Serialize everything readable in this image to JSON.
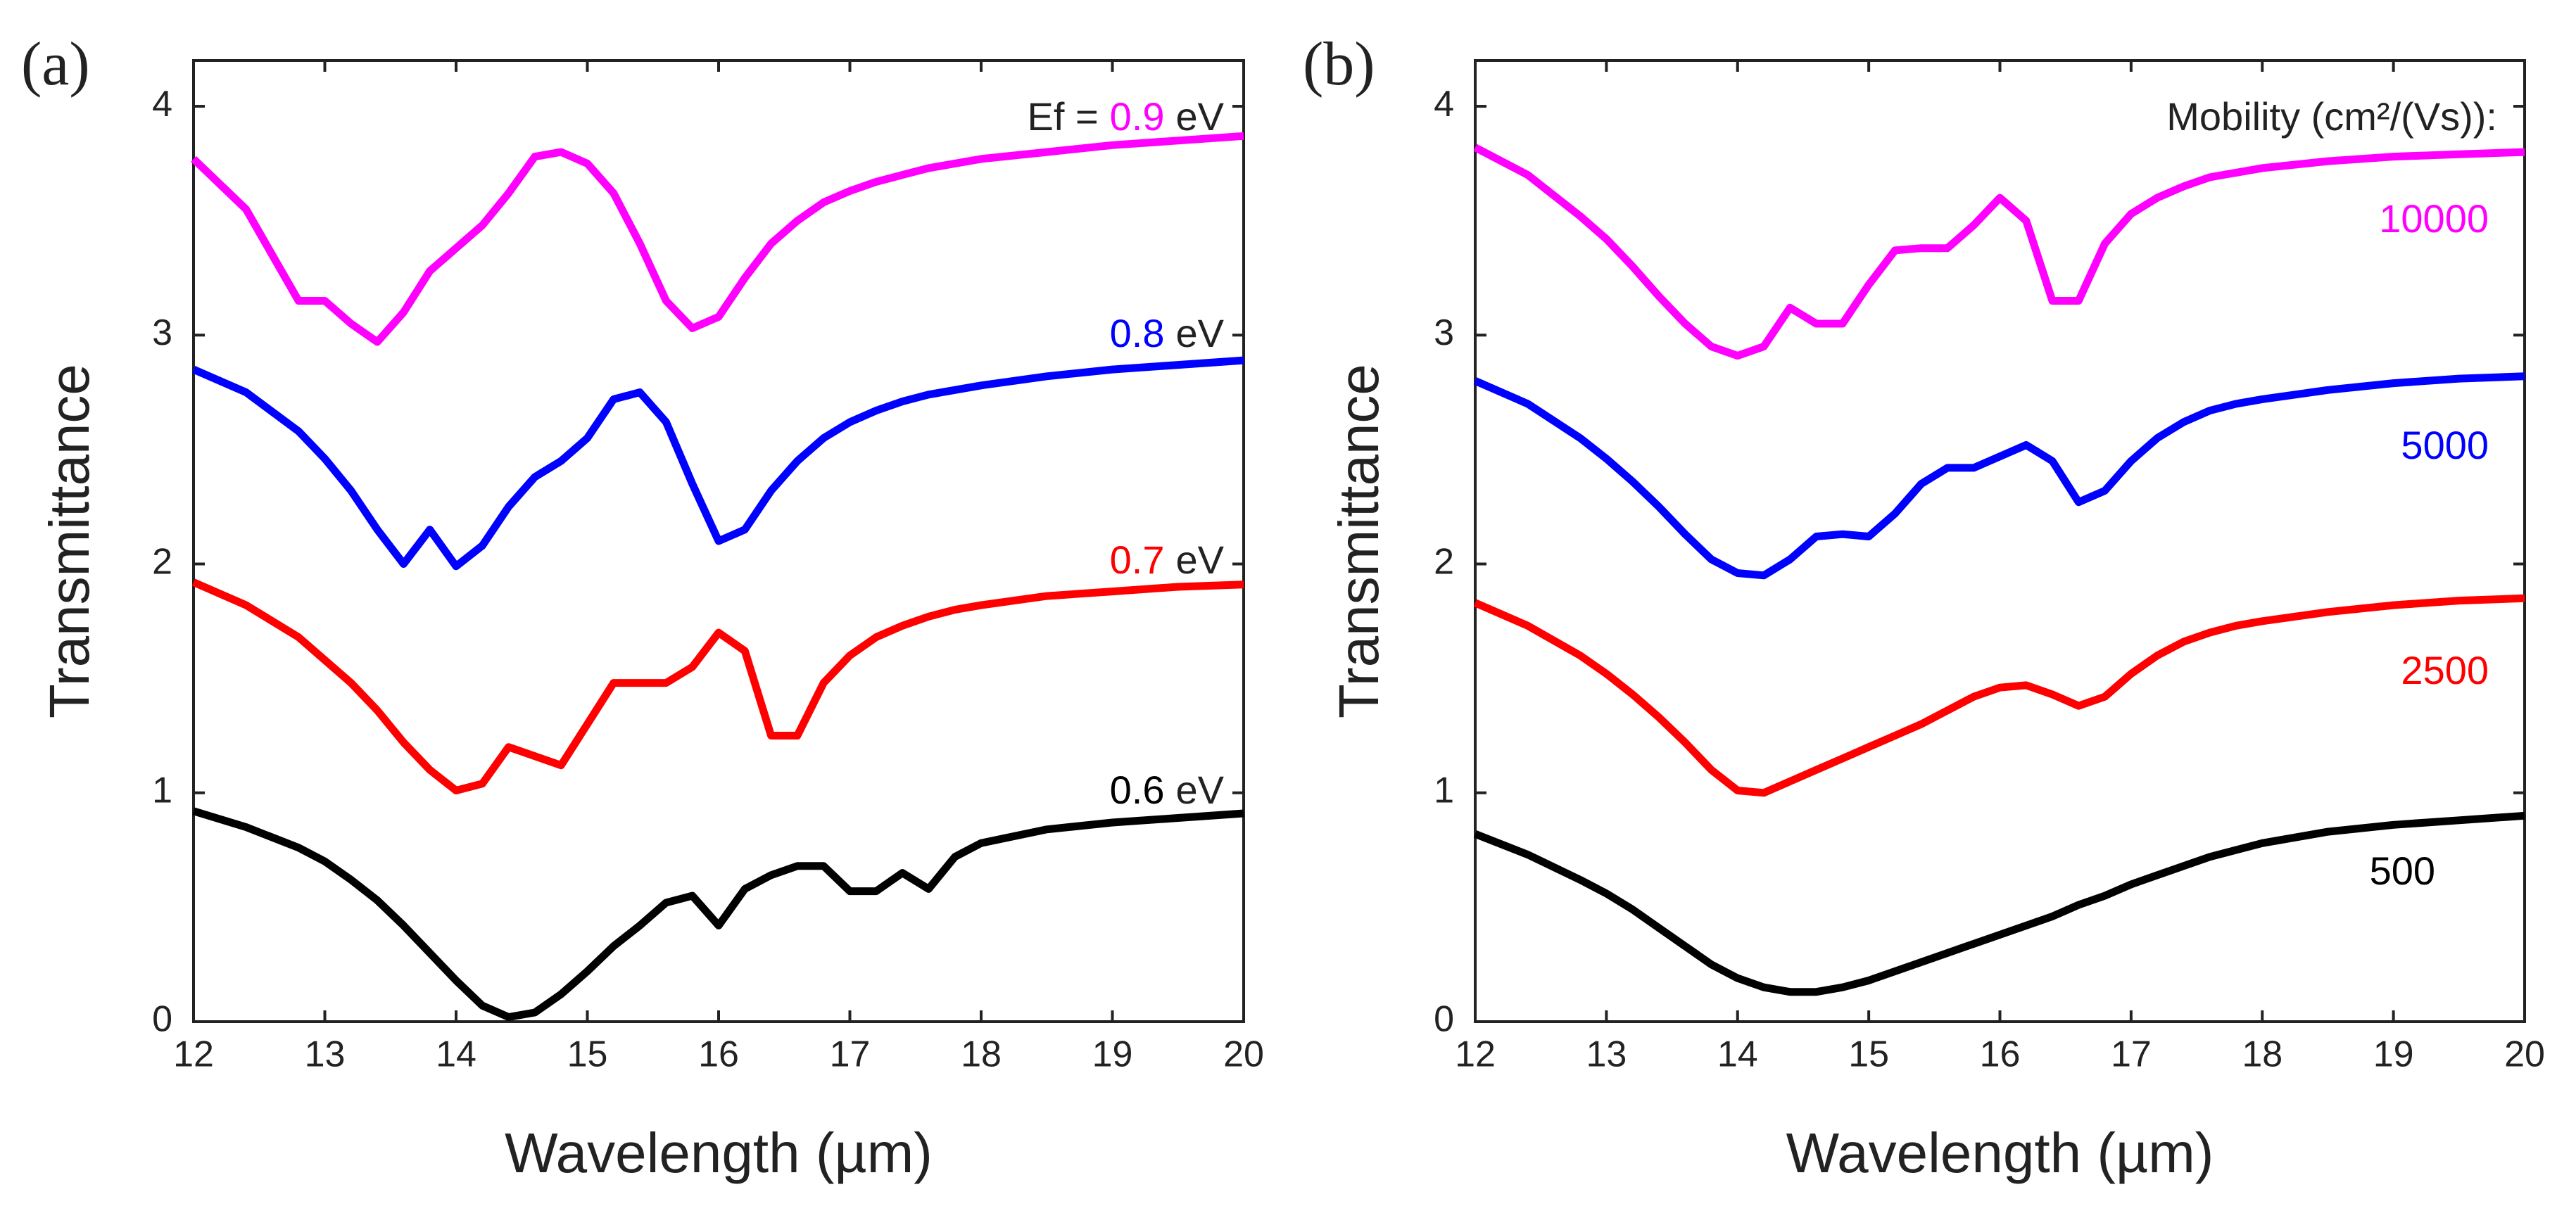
{
  "chart_data": [
    {
      "type": "line",
      "panel_label": "(a)",
      "x_label": "Wavelength (µm)",
      "y_label": "Transmittance",
      "legend_prefix": "Ef =",
      "unit": "eV",
      "xlim": [
        12,
        20
      ],
      "xticks": [
        12,
        13,
        14,
        15,
        16,
        17,
        18,
        19,
        20
      ],
      "ylim": [
        0,
        4.2
      ],
      "yticks": [
        0,
        1,
        2,
        3,
        4
      ],
      "grid": false,
      "x": [
        12,
        12.4,
        12.8,
        13.0,
        13.2,
        13.4,
        13.6,
        13.8,
        14.0,
        14.2,
        14.4,
        14.6,
        14.8,
        15.0,
        15.2,
        15.4,
        15.6,
        15.8,
        16.0,
        16.2,
        16.4,
        16.6,
        16.8,
        17.0,
        17.2,
        17.4,
        17.6,
        17.8,
        18.0,
        18.5,
        19.0,
        19.5,
        20.0
      ],
      "series": [
        {
          "name": "0.9",
          "color": "#ff00ff",
          "values": [
            3.77,
            3.55,
            3.15,
            3.15,
            3.05,
            2.97,
            3.1,
            3.28,
            3.38,
            3.48,
            3.62,
            3.78,
            3.8,
            3.75,
            3.62,
            3.4,
            3.15,
            3.03,
            3.08,
            3.25,
            3.4,
            3.5,
            3.58,
            3.63,
            3.67,
            3.7,
            3.73,
            3.75,
            3.77,
            3.8,
            3.83,
            3.85,
            3.87
          ]
        },
        {
          "name": "0.8",
          "color": "#0000ff",
          "values": [
            2.85,
            2.75,
            2.58,
            2.46,
            2.32,
            2.15,
            2.0,
            2.15,
            1.99,
            2.08,
            2.25,
            2.38,
            2.45,
            2.55,
            2.72,
            2.75,
            2.62,
            2.35,
            2.1,
            2.15,
            2.32,
            2.45,
            2.55,
            2.62,
            2.67,
            2.71,
            2.74,
            2.76,
            2.78,
            2.82,
            2.85,
            2.87,
            2.89
          ]
        },
        {
          "name": "0.7",
          "color": "#ff0000",
          "values": [
            1.92,
            1.82,
            1.68,
            1.58,
            1.48,
            1.36,
            1.22,
            1.1,
            1.01,
            1.04,
            1.2,
            1.16,
            1.12,
            1.3,
            1.48,
            1.48,
            1.48,
            1.55,
            1.7,
            1.62,
            1.25,
            1.25,
            1.48,
            1.6,
            1.68,
            1.73,
            1.77,
            1.8,
            1.82,
            1.86,
            1.88,
            1.9,
            1.91
          ]
        },
        {
          "name": "0.6",
          "color": "#000000",
          "values": [
            0.92,
            0.85,
            0.76,
            0.7,
            0.62,
            0.53,
            0.42,
            0.3,
            0.18,
            0.07,
            0.02,
            0.04,
            0.12,
            0.22,
            0.33,
            0.42,
            0.52,
            0.55,
            0.42,
            0.58,
            0.64,
            0.68,
            0.68,
            0.57,
            0.57,
            0.65,
            0.58,
            0.72,
            0.78,
            0.84,
            0.87,
            0.89,
            0.91
          ]
        }
      ]
    },
    {
      "type": "line",
      "panel_label": "(b)",
      "x_label": "Wavelength (µm)",
      "y_label": "Transmittance",
      "legend_title": "Mobility (cm²/(Vs)):",
      "xlim": [
        12,
        20
      ],
      "xticks": [
        12,
        13,
        14,
        15,
        16,
        17,
        18,
        19,
        20
      ],
      "ylim": [
        0,
        4.2
      ],
      "yticks": [
        0,
        1,
        2,
        3,
        4
      ],
      "grid": false,
      "x": [
        12,
        12.4,
        12.8,
        13.0,
        13.2,
        13.4,
        13.6,
        13.8,
        14.0,
        14.2,
        14.4,
        14.6,
        14.8,
        15.0,
        15.2,
        15.4,
        15.6,
        15.8,
        16.0,
        16.2,
        16.4,
        16.6,
        16.8,
        17.0,
        17.2,
        17.4,
        17.6,
        17.8,
        18.0,
        18.5,
        19.0,
        19.5,
        20.0
      ],
      "series": [
        {
          "name": "10000",
          "color": "#ff00ff",
          "values": [
            3.82,
            3.7,
            3.52,
            3.42,
            3.3,
            3.17,
            3.05,
            2.95,
            2.91,
            2.95,
            3.12,
            3.05,
            3.05,
            3.22,
            3.37,
            3.38,
            3.38,
            3.48,
            3.6,
            3.5,
            3.15,
            3.15,
            3.4,
            3.53,
            3.6,
            3.65,
            3.69,
            3.71,
            3.73,
            3.76,
            3.78,
            3.79,
            3.8
          ]
        },
        {
          "name": "5000",
          "color": "#0000ff",
          "values": [
            2.8,
            2.7,
            2.55,
            2.46,
            2.36,
            2.25,
            2.13,
            2.02,
            1.96,
            1.95,
            2.02,
            2.12,
            2.13,
            2.12,
            2.22,
            2.35,
            2.42,
            2.42,
            2.47,
            2.52,
            2.45,
            2.27,
            2.32,
            2.45,
            2.55,
            2.62,
            2.67,
            2.7,
            2.72,
            2.76,
            2.79,
            2.81,
            2.82
          ]
        },
        {
          "name": "2500",
          "color": "#ff0000",
          "values": [
            1.83,
            1.73,
            1.6,
            1.52,
            1.43,
            1.33,
            1.22,
            1.1,
            1.01,
            1.0,
            1.05,
            1.1,
            1.15,
            1.2,
            1.25,
            1.3,
            1.36,
            1.42,
            1.46,
            1.47,
            1.43,
            1.38,
            1.42,
            1.52,
            1.6,
            1.66,
            1.7,
            1.73,
            1.75,
            1.79,
            1.82,
            1.84,
            1.85
          ]
        },
        {
          "name": "500",
          "color": "#000000",
          "values": [
            0.82,
            0.73,
            0.62,
            0.56,
            0.49,
            0.41,
            0.33,
            0.25,
            0.19,
            0.15,
            0.13,
            0.13,
            0.15,
            0.18,
            0.22,
            0.26,
            0.3,
            0.34,
            0.38,
            0.42,
            0.46,
            0.51,
            0.55,
            0.6,
            0.64,
            0.68,
            0.72,
            0.75,
            0.78,
            0.83,
            0.86,
            0.88,
            0.9
          ]
        }
      ]
    }
  ]
}
